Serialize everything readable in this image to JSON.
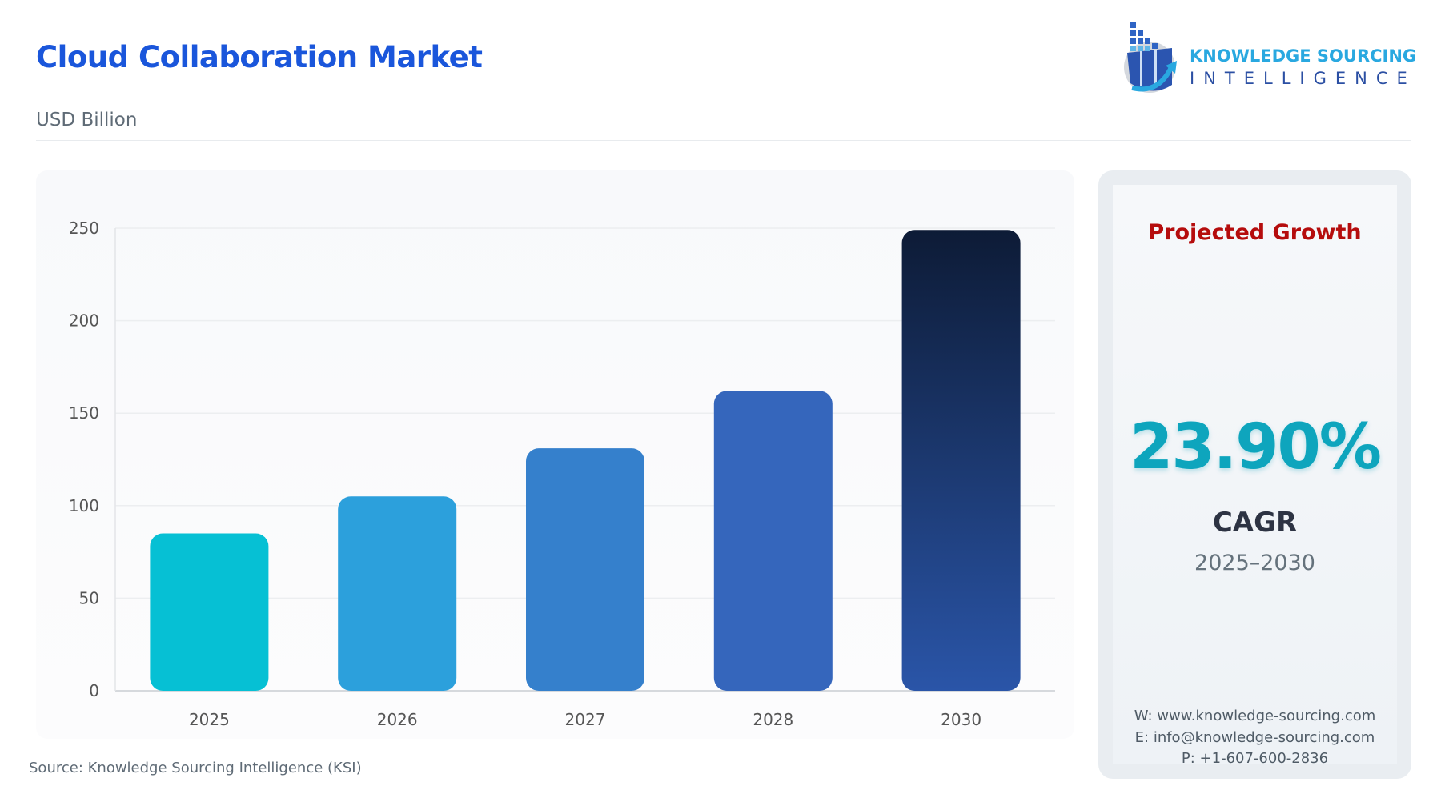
{
  "header": {
    "title": "Cloud Collaboration Market",
    "subtitle": "USD Billion"
  },
  "logo": {
    "line1": "KNOWLEDGE SOURCING",
    "line2": "INTELLIGENCE"
  },
  "chart_data": {
    "type": "bar",
    "categories": [
      "2025",
      "2026",
      "2027",
      "2028",
      "2030"
    ],
    "values": [
      85,
      105,
      131,
      162,
      249
    ],
    "ylim": [
      0,
      250
    ],
    "yticks": [
      0,
      50,
      100,
      150,
      200,
      250
    ],
    "grid": true,
    "xlabel": "",
    "ylabel": "",
    "colors": [
      "#06c0d4",
      "#2ca0dc",
      "#3580cc",
      "#3566bc",
      [
        "#0d1b36",
        "#2a55a8"
      ]
    ]
  },
  "source": "Source: Knowledge Sourcing Intelligence (KSI)",
  "panel": {
    "heading": "Projected Growth",
    "cagr_value": "23.90%",
    "cagr_label": "CAGR",
    "period": "2025–2030",
    "website": "W: www.knowledge-sourcing.com",
    "email": "E: info@knowledge-sourcing.com",
    "phone": "P: +1-607-600-2836"
  },
  "colors": {
    "title": "#1a56db",
    "heading": "#b50d0d",
    "cagr": "#0ea5bd"
  }
}
